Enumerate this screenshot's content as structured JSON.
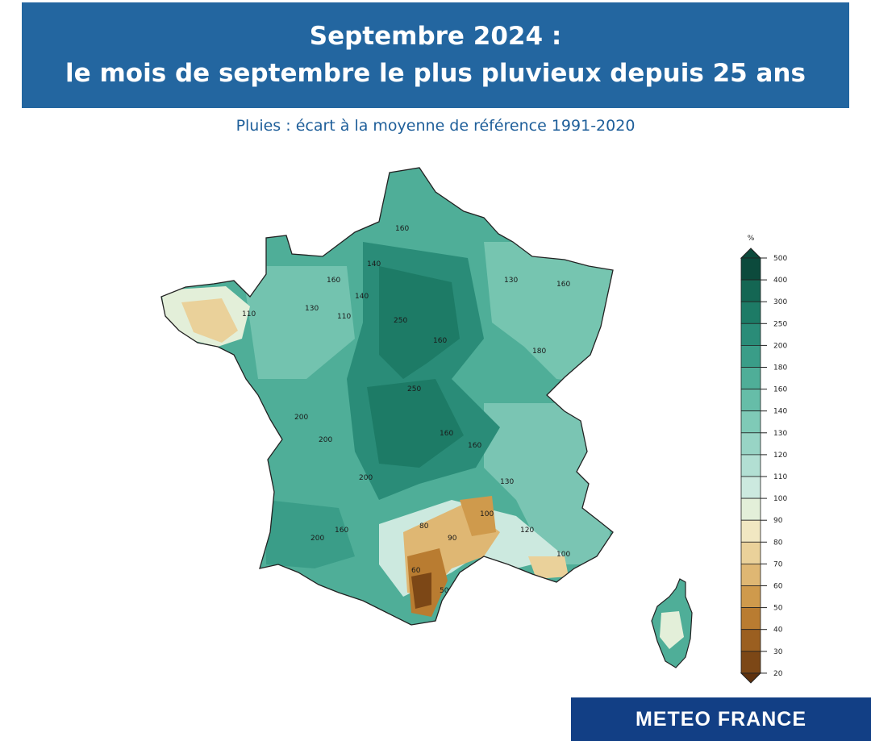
{
  "title": {
    "line1": "Septembre 2024 :",
    "line2": "le mois de septembre le plus pluvieux depuis 25 ans"
  },
  "subtitle": "Pluies : écart à la moyenne de référence 1991-2020",
  "legend": {
    "unit": "%",
    "levels": [
      500,
      400,
      300,
      250,
      200,
      180,
      160,
      140,
      130,
      120,
      110,
      100,
      90,
      80,
      70,
      60,
      50,
      40,
      30,
      20
    ],
    "colors": [
      "#0c4a3c",
      "#146653",
      "#1d7b66",
      "#2a8c78",
      "#3a9d88",
      "#4fae98",
      "#66bda8",
      "#7fcab7",
      "#98d4c5",
      "#b2dfd3",
      "#cce9df",
      "#e3efd9",
      "#f1e7c2",
      "#ead19a",
      "#dfb773",
      "#cf9a4c",
      "#b97c31",
      "#9b5f20",
      "#7c4716",
      "#5f320e"
    ]
  },
  "contour_labels": [
    {
      "text": "160"
    },
    {
      "text": "140"
    },
    {
      "text": "130"
    },
    {
      "text": "250"
    },
    {
      "text": "200"
    },
    {
      "text": "180"
    },
    {
      "text": "110"
    },
    {
      "text": "100"
    },
    {
      "text": "120"
    },
    {
      "text": "90"
    },
    {
      "text": "80"
    },
    {
      "text": "60"
    },
    {
      "text": "50"
    }
  ],
  "colors": {
    "banner": "#2366a0",
    "subtitle": "#1f5f9a",
    "footer": "#123f85"
  },
  "footer": {
    "brand": "METEO FRANCE"
  }
}
